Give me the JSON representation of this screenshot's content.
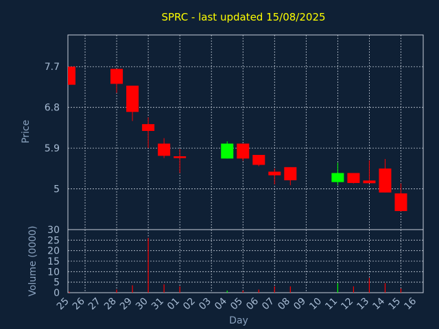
{
  "chart_data": [
    {
      "type": "candlestick",
      "title": "SPRC - last updated 15/08/2025",
      "ylabel": "Price",
      "xlabel": "Day",
      "ylim": [
        4.1,
        8.4
      ],
      "yticks": [
        5,
        5.9,
        6.8,
        7.7
      ],
      "ytick_labels": [
        "5",
        "5.9",
        "6.8",
        "7.7"
      ],
      "x_ticks": [
        "25",
        "26",
        "27",
        "28",
        "29",
        "30",
        "31",
        "01",
        "02",
        "03",
        "04",
        "05",
        "06",
        "07",
        "08",
        "09",
        "10",
        "11",
        "12",
        "13",
        "14",
        "15",
        "16"
      ],
      "candles": [
        {
          "day": "25",
          "open": 7.7,
          "high": 7.7,
          "low": 7.3,
          "close": 7.3,
          "color": "#ff0000"
        },
        {
          "day": "28",
          "open": 7.65,
          "high": 7.65,
          "low": 7.12,
          "close": 7.32,
          "color": "#ff0000"
        },
        {
          "day": "29",
          "open": 7.28,
          "high": 7.28,
          "low": 6.5,
          "close": 6.7,
          "color": "#ff0000"
        },
        {
          "day": "30",
          "open": 6.43,
          "high": 6.58,
          "low": 5.9,
          "close": 6.28,
          "color": "#ff0000"
        },
        {
          "day": "31",
          "open": 6.0,
          "high": 6.12,
          "low": 5.68,
          "close": 5.73,
          "color": "#ff0000"
        },
        {
          "day": "01",
          "open": 5.72,
          "high": 5.88,
          "low": 5.35,
          "close": 5.68,
          "color": "#ff0000"
        },
        {
          "day": "04",
          "open": 5.67,
          "high": 6.05,
          "low": 5.67,
          "close": 6.0,
          "color": "#00ff00"
        },
        {
          "day": "05",
          "open": 6.0,
          "high": 6.0,
          "low": 5.62,
          "close": 5.67,
          "color": "#ff0000"
        },
        {
          "day": "06",
          "open": 5.75,
          "high": 5.75,
          "low": 5.5,
          "close": 5.53,
          "color": "#ff0000"
        },
        {
          "day": "07",
          "open": 5.38,
          "high": 5.45,
          "low": 5.1,
          "close": 5.3,
          "color": "#ff0000"
        },
        {
          "day": "08",
          "open": 5.48,
          "high": 5.48,
          "low": 5.08,
          "close": 5.19,
          "color": "#ff0000"
        },
        {
          "day": "11",
          "open": 5.15,
          "high": 5.58,
          "low": 5.08,
          "close": 5.35,
          "color": "#00ff00"
        },
        {
          "day": "12",
          "open": 5.35,
          "high": 5.35,
          "low": 5.12,
          "close": 5.13,
          "color": "#ff0000"
        },
        {
          "day": "13",
          "open": 5.17,
          "high": 5.63,
          "low": 5.14,
          "close": 5.14,
          "color": "#ff0000"
        },
        {
          "day": "14",
          "open": 5.45,
          "high": 5.66,
          "low": 4.92,
          "close": 4.92,
          "color": "#ff0000"
        },
        {
          "day": "15",
          "open": 4.9,
          "high": 5.12,
          "low": 4.5,
          "close": 4.51,
          "color": "#ff0000"
        }
      ]
    },
    {
      "type": "bar",
      "ylabel": "Volume (0000)",
      "ylim": [
        0,
        30
      ],
      "yticks": [
        0,
        5,
        10,
        15,
        20,
        25,
        30
      ],
      "ytick_labels": [
        "0",
        "5",
        "10",
        "15",
        "20",
        "25",
        "30"
      ],
      "bars": [
        {
          "day": "25",
          "value": 0.5,
          "color": "#ff0000"
        },
        {
          "day": "28",
          "value": 1.5,
          "color": "#ff0000"
        },
        {
          "day": "29",
          "value": 3.5,
          "color": "#ff0000"
        },
        {
          "day": "30",
          "value": 26,
          "color": "#ff0000"
        },
        {
          "day": "31",
          "value": 4,
          "color": "#ff0000"
        },
        {
          "day": "01",
          "value": 3,
          "color": "#ff0000"
        },
        {
          "day": "04",
          "value": 1,
          "color": "#00ff00"
        },
        {
          "day": "05",
          "value": 1,
          "color": "#ff0000"
        },
        {
          "day": "06",
          "value": 1.5,
          "color": "#ff0000"
        },
        {
          "day": "07",
          "value": 3,
          "color": "#ff0000"
        },
        {
          "day": "08",
          "value": 3,
          "color": "#ff0000"
        },
        {
          "day": "11",
          "value": 4.5,
          "color": "#00ff00"
        },
        {
          "day": "12",
          "value": 3,
          "color": "#ff0000"
        },
        {
          "day": "13",
          "value": 7,
          "color": "#ff0000"
        },
        {
          "day": "14",
          "value": 4.5,
          "color": "#ff0000"
        },
        {
          "day": "15",
          "value": 2,
          "color": "#ff0000"
        }
      ]
    }
  ]
}
